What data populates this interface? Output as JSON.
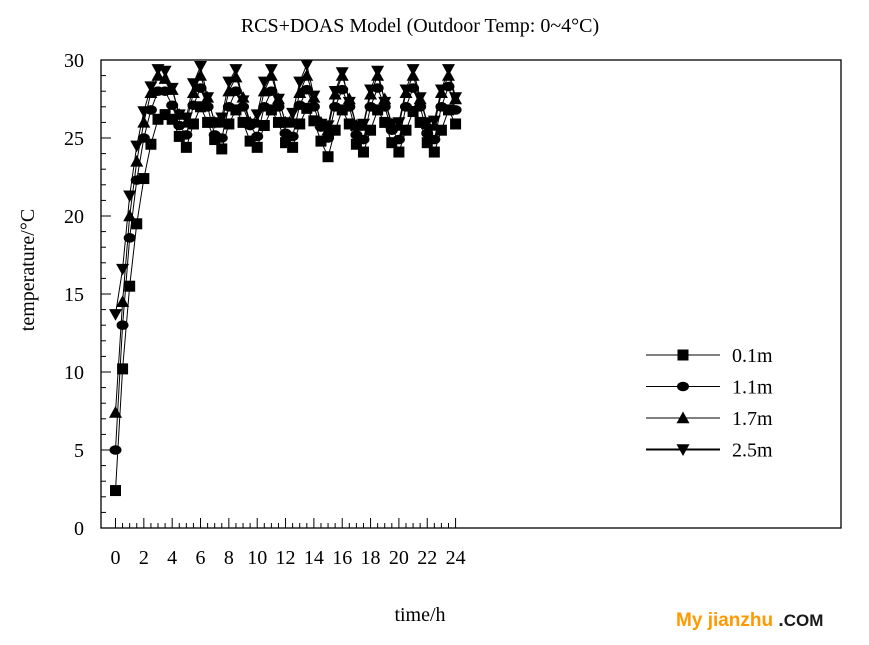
{
  "chart_data": {
    "type": "line",
    "title": "RCS+DOAS Model (Outdoor Temp: 0~4°C)",
    "xlabel": "time/h",
    "ylabel": "temperature/°C",
    "xlim": [
      -0.5,
      24.5
    ],
    "ylim": [
      0,
      30
    ],
    "xticks": [
      0,
      2,
      4,
      6,
      8,
      10,
      12,
      14,
      16,
      18,
      20,
      22,
      24
    ],
    "yticks": [
      0,
      5,
      10,
      15,
      20,
      25,
      30
    ],
    "grid": false,
    "legend_position": "lower-right",
    "x": [
      0,
      0.5,
      1,
      1.5,
      2,
      2.5,
      3,
      3.5,
      4,
      4.5,
      5,
      5.5,
      6,
      6.5,
      7,
      7.5,
      8,
      8.5,
      9,
      9.5,
      10,
      10.5,
      11,
      11.5,
      12,
      12.5,
      13,
      13.5,
      14,
      14.5,
      15,
      15.5,
      16,
      16.5,
      17,
      17.5,
      18,
      18.5,
      19,
      19.5,
      20,
      20.5,
      21,
      21.5,
      22,
      22.5,
      23,
      23.5,
      24
    ],
    "series": [
      {
        "name": "0.1m",
        "marker": "square",
        "values": [
          2.4,
          10.2,
          15.5,
          19.5,
          22.4,
          24.6,
          26.2,
          26.5,
          26.2,
          25.1,
          24.4,
          25.9,
          27.0,
          26.0,
          24.9,
          24.3,
          25.9,
          26.8,
          26.0,
          24.8,
          24.4,
          25.8,
          26.8,
          26.0,
          24.7,
          24.4,
          25.9,
          26.9,
          26.1,
          24.8,
          23.8,
          25.5,
          26.8,
          25.9,
          24.6,
          24.1,
          25.5,
          26.8,
          26.0,
          24.7,
          24.1,
          25.5,
          26.7,
          26.0,
          24.7,
          24.1,
          25.5,
          26.8,
          25.9
        ]
      },
      {
        "name": "1.1m",
        "marker": "circle",
        "values": [
          5.0,
          13.0,
          18.6,
          22.3,
          25.0,
          26.8,
          28.0,
          28.0,
          27.1,
          25.8,
          25.2,
          27.1,
          28.2,
          27.0,
          25.2,
          25.0,
          27.0,
          28.0,
          27.0,
          25.8,
          25.1,
          27.0,
          28.0,
          27.0,
          25.3,
          25.1,
          27.1,
          28.1,
          27.0,
          25.7,
          25.0,
          27.0,
          28.1,
          27.0,
          25.2,
          24.9,
          27.0,
          28.2,
          27.0,
          25.5,
          24.9,
          27.0,
          28.2,
          27.0,
          25.3,
          24.9,
          27.0,
          28.3,
          26.8
        ]
      },
      {
        "name": "1.7m",
        "marker": "triangle-up",
        "values": [
          7.4,
          14.5,
          20.0,
          23.5,
          26.0,
          27.9,
          29.0,
          28.8,
          28.1,
          26.5,
          26.0,
          27.9,
          29.0,
          27.6,
          26.0,
          26.0,
          28.0,
          28.9,
          27.6,
          26.0,
          26.0,
          28.0,
          29.0,
          27.5,
          26.0,
          26.0,
          27.9,
          29.0,
          27.6,
          26.0,
          25.5,
          27.8,
          29.0,
          27.5,
          25.8,
          25.8,
          27.8,
          29.0,
          27.5,
          25.9,
          25.8,
          27.9,
          29.0,
          27.5,
          25.9,
          25.8,
          27.9,
          29.0,
          27.5
        ]
      },
      {
        "name": "2.5m",
        "marker": "triangle-down",
        "values": [
          13.7,
          16.6,
          21.3,
          24.5,
          26.7,
          28.3,
          29.4,
          29.3,
          28.2,
          26.5,
          26.3,
          28.5,
          29.6,
          27.6,
          26.0,
          26.3,
          28.6,
          29.4,
          27.4,
          25.9,
          26.5,
          28.6,
          29.4,
          27.5,
          26.0,
          26.6,
          28.6,
          29.7,
          27.7,
          25.9,
          25.8,
          28.0,
          29.2,
          27.3,
          25.8,
          25.9,
          28.1,
          29.3,
          27.3,
          25.9,
          26.0,
          28.1,
          29.4,
          27.6,
          26.0,
          26.1,
          28.1,
          29.4,
          27.6
        ]
      }
    ]
  },
  "watermark": {
    "my": "My",
    "jianzhu": "jianzhu",
    "dot": ".",
    "com": "COM"
  }
}
